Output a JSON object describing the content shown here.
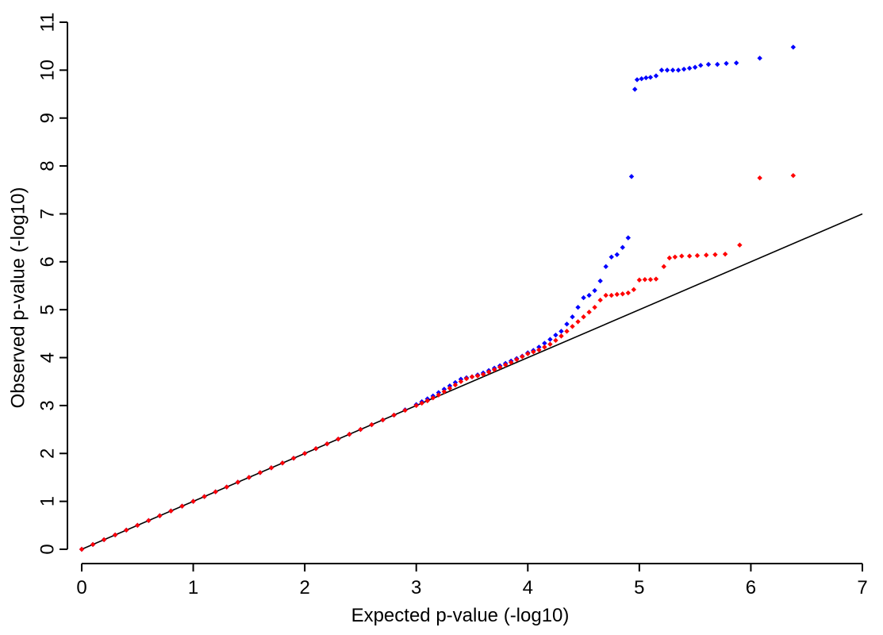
{
  "chart_data": {
    "type": "scatter",
    "xlabel": "Expected p-value (-log10)",
    "ylabel": "Observed p-value (-log10)",
    "xlim": [
      0,
      7
    ],
    "ylim": [
      0,
      11
    ],
    "xticks": [
      0,
      1,
      2,
      3,
      4,
      5,
      6,
      7
    ],
    "yticks": [
      0,
      1,
      2,
      3,
      4,
      5,
      6,
      7,
      8,
      9,
      10,
      11
    ],
    "reference_line": {
      "from": [
        0,
        0
      ],
      "to": [
        7,
        7
      ],
      "color": "#000000"
    },
    "series": [
      {
        "color": "#0000ff",
        "x": [
          0,
          0.1,
          0.2,
          0.3,
          0.4,
          0.5,
          0.6,
          0.7,
          0.8,
          0.9,
          1.0,
          1.1,
          1.2,
          1.3,
          1.4,
          1.5,
          1.6,
          1.7,
          1.8,
          1.9,
          2.0,
          2.1,
          2.2,
          2.3,
          2.4,
          2.5,
          2.6,
          2.7,
          2.8,
          2.9,
          3.0,
          3.05,
          3.1,
          3.15,
          3.2,
          3.25,
          3.3,
          3.35,
          3.4,
          3.45,
          3.5,
          3.55,
          3.6,
          3.65,
          3.7,
          3.75,
          3.8,
          3.85,
          3.9,
          3.95,
          4.0,
          4.05,
          4.1,
          4.15,
          4.2,
          4.25,
          4.3,
          4.35,
          4.4,
          4.45,
          4.5,
          4.55,
          4.6,
          4.65,
          4.7,
          4.75,
          4.8,
          4.85,
          4.9,
          4.93,
          4.96,
          4.98,
          5.02,
          5.06,
          5.1,
          5.15,
          5.2,
          5.25,
          5.3,
          5.35,
          5.4,
          5.45,
          5.5,
          5.55,
          5.62,
          5.7,
          5.78,
          5.87,
          6.08,
          6.38
        ],
        "y": [
          0,
          0.1,
          0.2,
          0.3,
          0.4,
          0.5,
          0.6,
          0.7,
          0.8,
          0.9,
          1.0,
          1.1,
          1.2,
          1.3,
          1.4,
          1.5,
          1.6,
          1.7,
          1.8,
          1.9,
          2.0,
          2.1,
          2.2,
          2.3,
          2.4,
          2.5,
          2.6,
          2.7,
          2.8,
          2.91,
          3.02,
          3.08,
          3.14,
          3.2,
          3.27,
          3.34,
          3.41,
          3.48,
          3.55,
          3.58,
          3.6,
          3.64,
          3.68,
          3.73,
          3.78,
          3.83,
          3.88,
          3.93,
          3.98,
          4.03,
          4.1,
          4.15,
          4.22,
          4.3,
          4.38,
          4.47,
          4.55,
          4.7,
          4.85,
          5.05,
          5.25,
          5.3,
          5.4,
          5.6,
          5.9,
          6.1,
          6.15,
          6.3,
          6.5,
          7.78,
          9.6,
          9.8,
          9.82,
          9.84,
          9.85,
          9.88,
          10.0,
          10.0,
          10.0,
          10.0,
          10.02,
          10.04,
          10.06,
          10.1,
          10.12,
          10.12,
          10.14,
          10.15,
          10.25,
          10.48
        ]
      },
      {
        "color": "#ff0000",
        "x": [
          0,
          0.1,
          0.2,
          0.3,
          0.4,
          0.5,
          0.6,
          0.7,
          0.8,
          0.9,
          1.0,
          1.1,
          1.2,
          1.3,
          1.4,
          1.5,
          1.6,
          1.7,
          1.8,
          1.9,
          2.0,
          2.1,
          2.2,
          2.3,
          2.4,
          2.5,
          2.6,
          2.7,
          2.8,
          2.9,
          3.0,
          3.05,
          3.1,
          3.15,
          3.2,
          3.25,
          3.3,
          3.35,
          3.4,
          3.45,
          3.5,
          3.55,
          3.6,
          3.65,
          3.7,
          3.75,
          3.8,
          3.85,
          3.9,
          3.95,
          4.0,
          4.05,
          4.1,
          4.15,
          4.2,
          4.25,
          4.3,
          4.35,
          4.4,
          4.45,
          4.5,
          4.55,
          4.6,
          4.65,
          4.7,
          4.75,
          4.8,
          4.85,
          4.9,
          4.95,
          5.0,
          5.05,
          5.1,
          5.15,
          5.22,
          5.27,
          5.32,
          5.38,
          5.45,
          5.52,
          5.6,
          5.68,
          5.77,
          5.9,
          6.08,
          6.38
        ],
        "y": [
          0,
          0.1,
          0.2,
          0.3,
          0.4,
          0.5,
          0.6,
          0.7,
          0.8,
          0.9,
          1.0,
          1.1,
          1.2,
          1.3,
          1.4,
          1.5,
          1.6,
          1.7,
          1.8,
          1.9,
          2.0,
          2.1,
          2.2,
          2.3,
          2.4,
          2.5,
          2.6,
          2.7,
          2.8,
          2.9,
          3.0,
          3.05,
          3.1,
          3.16,
          3.22,
          3.29,
          3.36,
          3.43,
          3.5,
          3.56,
          3.6,
          3.62,
          3.65,
          3.7,
          3.75,
          3.8,
          3.85,
          3.9,
          3.96,
          4.02,
          4.08,
          4.12,
          4.16,
          4.22,
          4.28,
          4.36,
          4.45,
          4.55,
          4.65,
          4.75,
          4.85,
          4.95,
          5.05,
          5.2,
          5.3,
          5.3,
          5.32,
          5.33,
          5.35,
          5.42,
          5.62,
          5.63,
          5.63,
          5.64,
          5.9,
          6.08,
          6.1,
          6.12,
          6.12,
          6.13,
          6.14,
          6.15,
          6.16,
          6.35,
          7.75,
          7.8
        ]
      }
    ]
  }
}
